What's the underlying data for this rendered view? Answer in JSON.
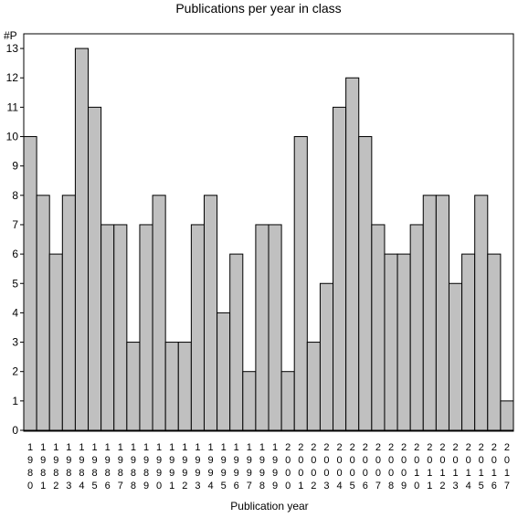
{
  "chart_data": {
    "type": "bar",
    "title": "Publications per year in class",
    "ylabel": "#P",
    "xlabel": "Publication year",
    "ylim": [
      0,
      13.5
    ],
    "yticks": [
      0,
      1,
      2,
      3,
      4,
      5,
      6,
      7,
      8,
      9,
      10,
      11,
      12,
      13
    ],
    "grid": false,
    "categories": [
      "1980",
      "1981",
      "1982",
      "1983",
      "1984",
      "1985",
      "1986",
      "1987",
      "1988",
      "1989",
      "1990",
      "1991",
      "1992",
      "1993",
      "1994",
      "1995",
      "1996",
      "1997",
      "1998",
      "1999",
      "2000",
      "2001",
      "2002",
      "2003",
      "2004",
      "2005",
      "2006",
      "2007",
      "2008",
      "2009",
      "2010",
      "2011",
      "2012",
      "2013",
      "2014",
      "2015",
      "2016",
      "2017"
    ],
    "values": [
      10,
      8,
      6,
      8,
      13,
      11,
      7,
      7,
      3,
      7,
      8,
      3,
      3,
      7,
      8,
      4,
      6,
      2,
      7,
      7,
      2,
      10,
      3,
      5,
      11,
      12,
      10,
      7,
      6,
      6,
      7,
      8,
      8,
      5,
      6,
      8,
      6,
      1
    ],
    "bar_color": "#c0c0c0"
  }
}
